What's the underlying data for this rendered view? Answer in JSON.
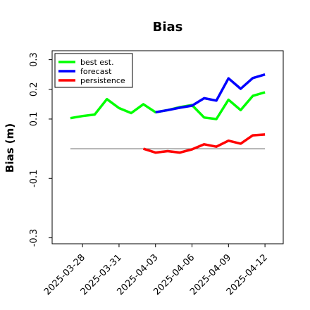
{
  "chart_data": {
    "type": "line",
    "title": "Bias",
    "xlabel": "",
    "ylabel": "Bias (m)",
    "ylim": [
      -0.32,
      0.33
    ],
    "yticks": [
      0.3,
      0.2,
      0.1,
      -0.1,
      -0.3
    ],
    "yticklabels": [
      "0.3",
      "0.2",
      "0.1",
      "-0.1",
      "-0.3"
    ],
    "xlim": [
      "2025-03-25T12:00",
      "2025-04-13T12:00"
    ],
    "xticks": [
      "2025-03-28",
      "2025-03-31",
      "2025-04-03",
      "2025-04-06",
      "2025-04-09",
      "2025-04-12"
    ],
    "highlight_tick": "2025-04-03",
    "highlight_color": "#228b22",
    "zero_line": 0,
    "zero_line_color": "#808080",
    "zero_line_range": [
      "2025-03-27",
      "2025-04-12"
    ],
    "legend": {
      "placement": "top-left"
    },
    "grid": false,
    "series": [
      {
        "name": "best est.",
        "color": "#00ff00",
        "points": [
          [
            "2025-03-27",
            0.103
          ],
          [
            "2025-03-28",
            0.11
          ],
          [
            "2025-03-29",
            0.115
          ],
          [
            "2025-03-30",
            0.167
          ],
          [
            "2025-03-31",
            0.137
          ],
          [
            "2025-04-01",
            0.12
          ],
          [
            "2025-04-02",
            0.15
          ],
          [
            "2025-04-03",
            0.123
          ],
          [
            "2025-04-04",
            0.13
          ],
          [
            "2025-04-05",
            0.14
          ],
          [
            "2025-04-06",
            0.147
          ],
          [
            "2025-04-07",
            0.105
          ],
          [
            "2025-04-08",
            0.1
          ],
          [
            "2025-04-09",
            0.165
          ],
          [
            "2025-04-10",
            0.13
          ],
          [
            "2025-04-11",
            0.178
          ],
          [
            "2025-04-12",
            0.19
          ]
        ]
      },
      {
        "name": "forecast",
        "color": "#0000ff",
        "points": [
          [
            "2025-04-03",
            0.123
          ],
          [
            "2025-04-04",
            0.13
          ],
          [
            "2025-04-05",
            0.138
          ],
          [
            "2025-04-06",
            0.145
          ],
          [
            "2025-04-07",
            0.17
          ],
          [
            "2025-04-08",
            0.162
          ],
          [
            "2025-04-09",
            0.237
          ],
          [
            "2025-04-10",
            0.202
          ],
          [
            "2025-04-11",
            0.238
          ],
          [
            "2025-04-12",
            0.25
          ]
        ]
      },
      {
        "name": "persistence",
        "color": "#ff0000",
        "points": [
          [
            "2025-04-02",
            0.0
          ],
          [
            "2025-04-03",
            -0.013
          ],
          [
            "2025-04-04",
            -0.008
          ],
          [
            "2025-04-05",
            -0.013
          ],
          [
            "2025-04-06",
            -0.002
          ],
          [
            "2025-04-07",
            0.015
          ],
          [
            "2025-04-08",
            0.007
          ],
          [
            "2025-04-09",
            0.027
          ],
          [
            "2025-04-10",
            0.017
          ],
          [
            "2025-04-11",
            0.045
          ],
          [
            "2025-04-12",
            0.048
          ]
        ]
      }
    ]
  }
}
